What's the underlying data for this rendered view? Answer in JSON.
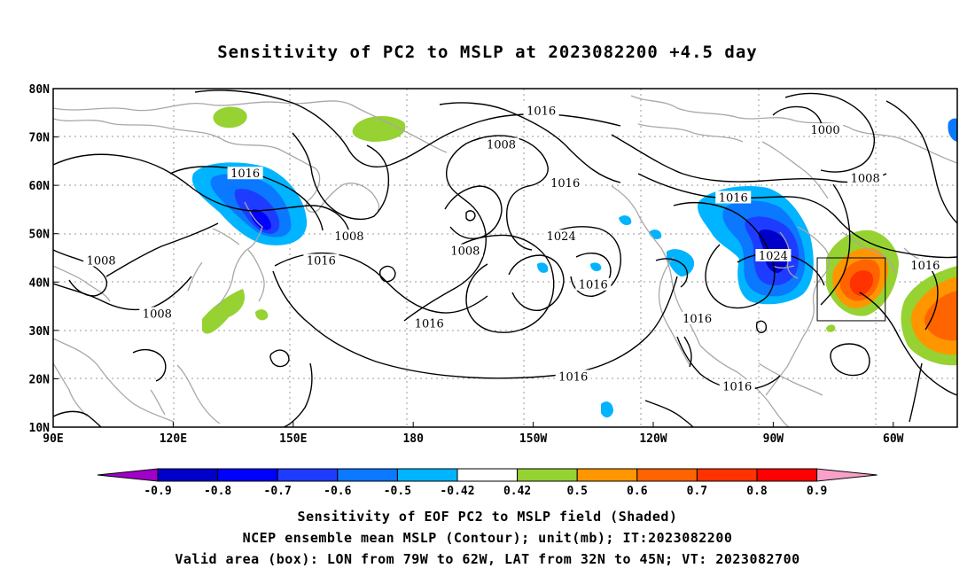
{
  "title": "Sensitivity of PC2 to MSLP at 2023082200 +4.5 day",
  "map": {
    "lon_ticks": [
      "90E",
      "120E",
      "150E",
      "180",
      "150W",
      "120W",
      "90W",
      "60W"
    ],
    "lat_ticks": [
      "80N",
      "70N",
      "60N",
      "50N",
      "40N",
      "30N",
      "20N",
      "10N"
    ],
    "lon_range": [
      "90E",
      "46W"
    ],
    "lat_range": [
      "10N",
      "80N"
    ],
    "grid": "dotted",
    "contour_labels": [
      {
        "text": "1016",
        "lon": "-148",
        "lat": "75"
      },
      {
        "text": "1008",
        "lon": "-158",
        "lat": "68"
      },
      {
        "text": "1000",
        "lon": "-77",
        "lat": "71"
      },
      {
        "text": "1016",
        "lon": "138",
        "lat": "62"
      },
      {
        "text": "1016",
        "lon": "-142",
        "lat": "60"
      },
      {
        "text": "1008",
        "lon": "-67",
        "lat": "61"
      },
      {
        "text": "1016",
        "lon": "-100",
        "lat": "57"
      },
      {
        "text": "1024",
        "lon": "-143",
        "lat": "49"
      },
      {
        "text": "1008",
        "lon": "164",
        "lat": "49"
      },
      {
        "text": "1008",
        "lon": "-167",
        "lat": "46"
      },
      {
        "text": "1008",
        "lon": "102",
        "lat": "44"
      },
      {
        "text": "1016",
        "lon": "157",
        "lat": "44"
      },
      {
        "text": "1024",
        "lon": "-90",
        "lat": "45"
      },
      {
        "text": "1016",
        "lon": "-52",
        "lat": "43"
      },
      {
        "text": "1016",
        "lon": "-135",
        "lat": "39"
      },
      {
        "text": "1008",
        "lon": "116",
        "lat": "33"
      },
      {
        "text": "1016",
        "lon": "-176",
        "lat": "31"
      },
      {
        "text": "1016",
        "lon": "-109",
        "lat": "32"
      },
      {
        "text": "1016",
        "lon": "-140",
        "lat": "20"
      },
      {
        "text": "1016",
        "lon": "-99",
        "lat": "18"
      }
    ],
    "valid_box": {
      "lon_min": "-79",
      "lon_max": "-62",
      "lat_min": "32",
      "lat_max": "45"
    }
  },
  "colorbar": {
    "labels": [
      "-0.9",
      "-0.8",
      "-0.7",
      "-0.6",
      "-0.5",
      "-0.42",
      "0.42",
      "0.5",
      "0.6",
      "0.7",
      "0.8",
      "0.9"
    ],
    "colors": [
      "#a000c8",
      "#0000c8",
      "#0000ff",
      "#1e3cff",
      "#0a78ff",
      "#00b4ff",
      "#ffffff",
      "#96d232",
      "#ff9600",
      "#ff6400",
      "#ff3200",
      "#ff0000",
      "#f7a0c8"
    ]
  },
  "captions": [
    "Sensitivity of EOF PC2 to MSLP field (Shaded)",
    "NCEP ensemble mean MSLP (Contour); unit(mb); IT:2023082200",
    "Valid area (box): LON from 79W to 62W, LAT from 32N to 45N; VT: 2023082700"
  ]
}
